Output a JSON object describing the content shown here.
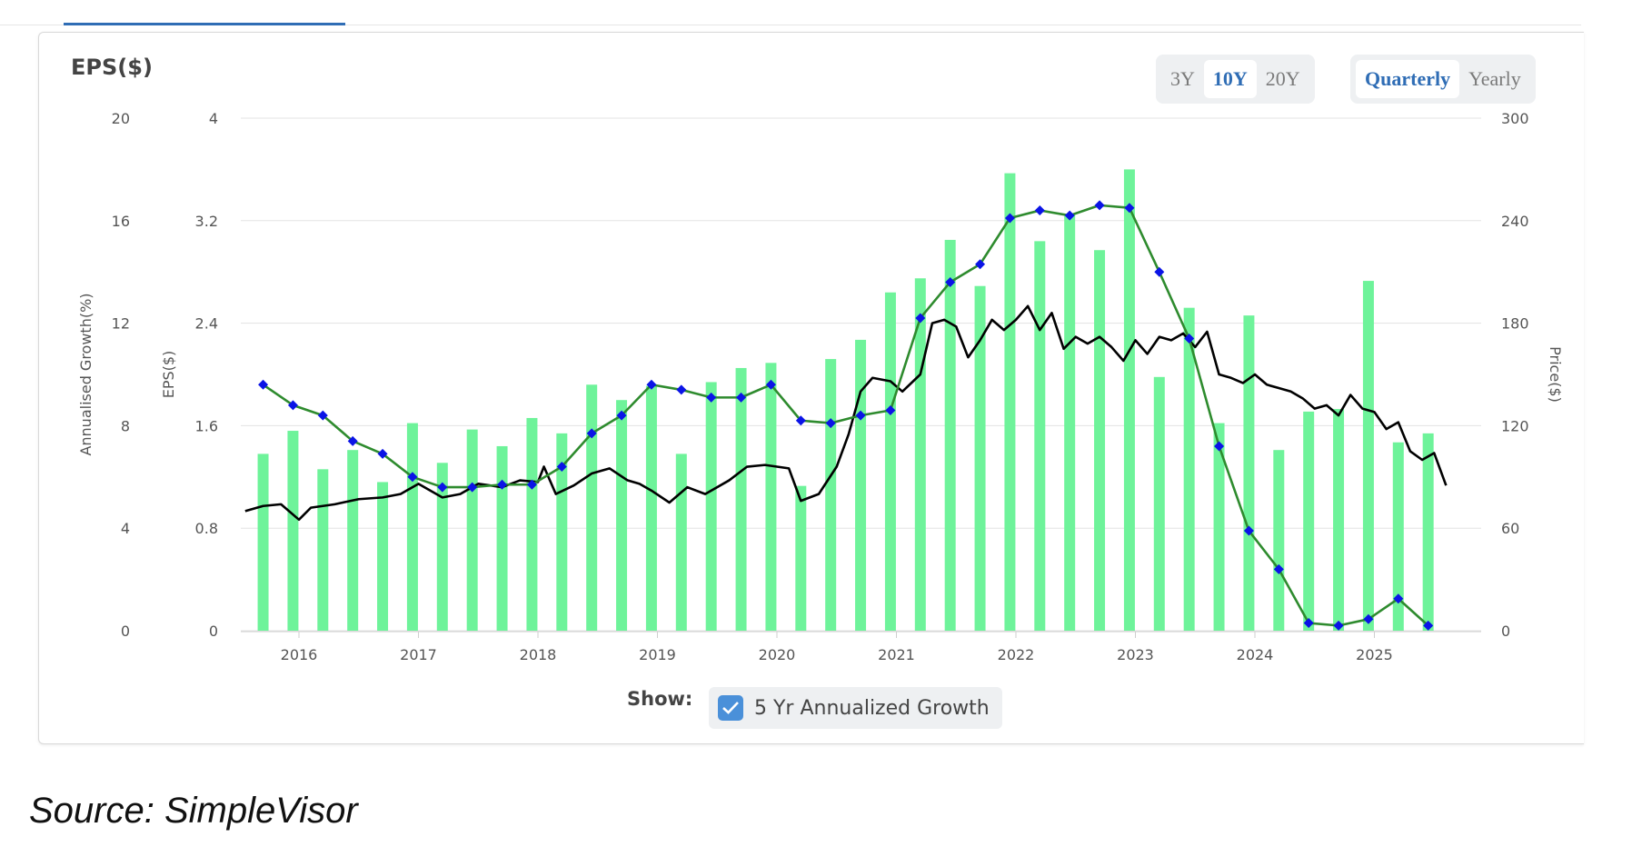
{
  "title": "EPS($)",
  "range_buttons": [
    {
      "label": "3Y",
      "active": false
    },
    {
      "label": "10Y",
      "active": true
    },
    {
      "label": "20Y",
      "active": false
    }
  ],
  "period_buttons": [
    {
      "label": "Quarterly",
      "active": true
    },
    {
      "label": "Yearly",
      "active": false
    }
  ],
  "show": {
    "label": "Show:",
    "toggle_label": "5 Yr Annualized Growth",
    "checked": true
  },
  "source": "Source: SimpleVisor",
  "colors": {
    "bar": "#6ef39a",
    "growth_line": "#2e8b2e",
    "growth_marker": "#0b14e6",
    "price_line": "#000000",
    "grid": "#e3e3e3",
    "accent": "#2f6db5"
  },
  "chart_data": {
    "type": "bar",
    "x_tick_labels": [
      "2016",
      "2017",
      "2018",
      "2019",
      "2020",
      "2021",
      "2022",
      "2023",
      "2024",
      "2025"
    ],
    "axes": {
      "growth": {
        "label": "Annualised Growth(%)",
        "range": [
          0,
          20
        ],
        "ticks": [
          "0",
          "4",
          "8",
          "12",
          "16",
          "20"
        ]
      },
      "eps": {
        "label": "EPS($)",
        "range": [
          0,
          4
        ],
        "ticks": [
          "0",
          "0.8",
          "1.6",
          "2.4",
          "3.2",
          "4"
        ]
      },
      "price": {
        "label": "Price($)",
        "range": [
          0,
          300
        ],
        "ticks": [
          "0",
          "60",
          "120",
          "180",
          "240",
          "300"
        ]
      }
    },
    "grid": true,
    "eps_bars": {
      "dates": [
        2015.7,
        2015.95,
        2016.2,
        2016.45,
        2016.7,
        2016.95,
        2017.2,
        2017.45,
        2017.7,
        2017.95,
        2018.2,
        2018.45,
        2018.7,
        2018.95,
        2019.2,
        2019.45,
        2019.7,
        2019.95,
        2020.2,
        2020.45,
        2020.7,
        2020.95,
        2021.2,
        2021.45,
        2021.7,
        2021.95,
        2022.2,
        2022.45,
        2022.7,
        2022.95,
        2023.2,
        2023.45,
        2023.7,
        2023.95,
        2024.2,
        2024.45,
        2024.7,
        2024.95,
        2025.2,
        2025.45
      ],
      "values": [
        1.38,
        1.56,
        1.26,
        1.41,
        1.16,
        1.62,
        1.31,
        1.57,
        1.44,
        1.66,
        1.54,
        1.92,
        1.8,
        1.91,
        1.38,
        1.94,
        2.05,
        2.09,
        1.13,
        2.12,
        2.27,
        2.64,
        2.75,
        3.05,
        2.69,
        3.57,
        3.04,
        3.25,
        2.97,
        3.6,
        1.98,
        2.52,
        1.62,
        2.46,
        1.41,
        1.71,
        1.73,
        2.73,
        1.47,
        1.54
      ]
    },
    "growth_5yr": {
      "dates": [
        2015.7,
        2015.95,
        2016.2,
        2016.45,
        2016.7,
        2016.95,
        2017.2,
        2017.45,
        2017.7,
        2017.95,
        2018.2,
        2018.45,
        2018.7,
        2018.95,
        2019.2,
        2019.45,
        2019.7,
        2019.95,
        2020.2,
        2020.45,
        2020.7,
        2020.95,
        2021.2,
        2021.45,
        2021.7,
        2021.95,
        2022.2,
        2022.45,
        2022.7,
        2022.95,
        2023.2,
        2023.45,
        2023.7,
        2023.95,
        2024.2,
        2024.45,
        2024.7,
        2024.95,
        2025.2,
        2025.45
      ],
      "values": [
        9.6,
        8.8,
        8.4,
        7.4,
        6.9,
        6.0,
        5.6,
        5.6,
        5.7,
        5.7,
        6.4,
        7.7,
        8.4,
        9.6,
        9.4,
        9.1,
        9.1,
        9.6,
        8.2,
        8.1,
        8.4,
        8.6,
        12.2,
        13.6,
        14.3,
        16.1,
        16.4,
        16.2,
        16.6,
        16.5,
        14.0,
        11.4,
        7.2,
        3.9,
        2.4,
        0.3,
        0.2,
        0.45,
        1.25,
        0.2
      ]
    },
    "price": {
      "dates": [
        2015.55,
        2015.7,
        2015.85,
        2016.0,
        2016.1,
        2016.3,
        2016.5,
        2016.7,
        2016.85,
        2017.0,
        2017.2,
        2017.35,
        2017.5,
        2017.7,
        2017.85,
        2018.0,
        2018.05,
        2018.15,
        2018.3,
        2018.45,
        2018.6,
        2018.75,
        2018.85,
        2018.95,
        2019.1,
        2019.25,
        2019.4,
        2019.6,
        2019.75,
        2019.9,
        2020.1,
        2020.2,
        2020.35,
        2020.5,
        2020.6,
        2020.7,
        2020.8,
        2020.95,
        2021.05,
        2021.2,
        2021.3,
        2021.4,
        2021.5,
        2021.6,
        2021.7,
        2021.8,
        2021.9,
        2022.0,
        2022.1,
        2022.2,
        2022.3,
        2022.4,
        2022.5,
        2022.6,
        2022.7,
        2022.8,
        2022.9,
        2023.0,
        2023.1,
        2023.2,
        2023.3,
        2023.4,
        2023.5,
        2023.6,
        2023.7,
        2023.8,
        2023.9,
        2024.0,
        2024.1,
        2024.2,
        2024.3,
        2024.4,
        2024.5,
        2024.6,
        2024.7,
        2024.8,
        2024.9,
        2025.0,
        2025.1,
        2025.2,
        2025.3,
        2025.4,
        2025.5,
        2025.6
      ],
      "values": [
        70,
        73,
        74,
        65,
        72,
        74,
        77,
        78,
        80,
        86,
        78,
        80,
        86,
        84,
        88,
        87,
        96,
        80,
        85,
        92,
        95,
        88,
        86,
        82,
        75,
        84,
        80,
        88,
        96,
        97,
        95,
        76,
        80,
        96,
        115,
        140,
        148,
        146,
        140,
        150,
        180,
        182,
        178,
        160,
        170,
        182,
        176,
        182,
        190,
        176,
        186,
        165,
        172,
        168,
        172,
        166,
        158,
        170,
        162,
        172,
        170,
        174,
        166,
        175,
        150,
        148,
        145,
        150,
        144,
        142,
        140,
        136,
        130,
        132,
        126,
        138,
        130,
        128,
        118,
        122,
        105,
        100,
        104,
        85
      ]
    }
  }
}
